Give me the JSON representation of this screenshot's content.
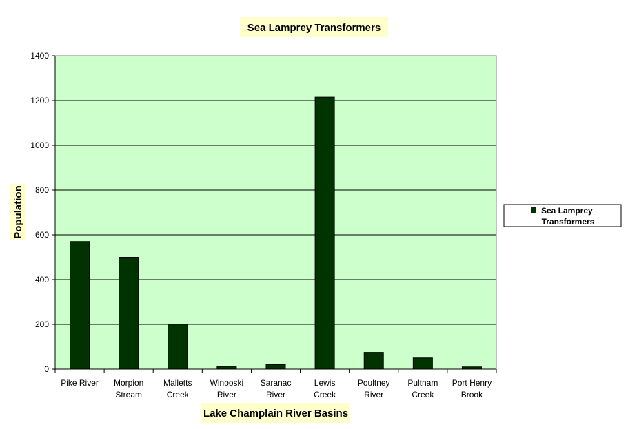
{
  "chart_data": {
    "type": "bar",
    "title": "Sea Lamprey Transformers",
    "xlabel": "Lake Champlain River Basins",
    "ylabel": "Population",
    "categories": [
      [
        "Pike River"
      ],
      [
        "Morpion",
        "Stream"
      ],
      [
        "Malletts",
        "Creek"
      ],
      [
        "Winooski",
        "River"
      ],
      [
        "Saranac",
        "River"
      ],
      [
        "Lewis",
        "Creek"
      ],
      [
        "Poultney",
        "River"
      ],
      [
        "Pultnam",
        "Creek"
      ],
      [
        "Port Henry",
        "Brook"
      ]
    ],
    "series": [
      {
        "name": "Sea Lamprey Transformers",
        "legend_lines": [
          "Sea Lamprey",
          "Transformers"
        ],
        "values": [
          570,
          500,
          200,
          12,
          20,
          1215,
          75,
          50,
          10
        ],
        "color": "#003300"
      }
    ],
    "ylim": [
      0,
      1400
    ],
    "yticks": [
      "0",
      "200",
      "400",
      "600",
      "800",
      "1000",
      "1200",
      "1400"
    ],
    "grid": true,
    "legend": "right",
    "colors": {
      "plot_background": "#ccffcc",
      "label_background": "#ffffcc",
      "bar": "#003300"
    }
  }
}
